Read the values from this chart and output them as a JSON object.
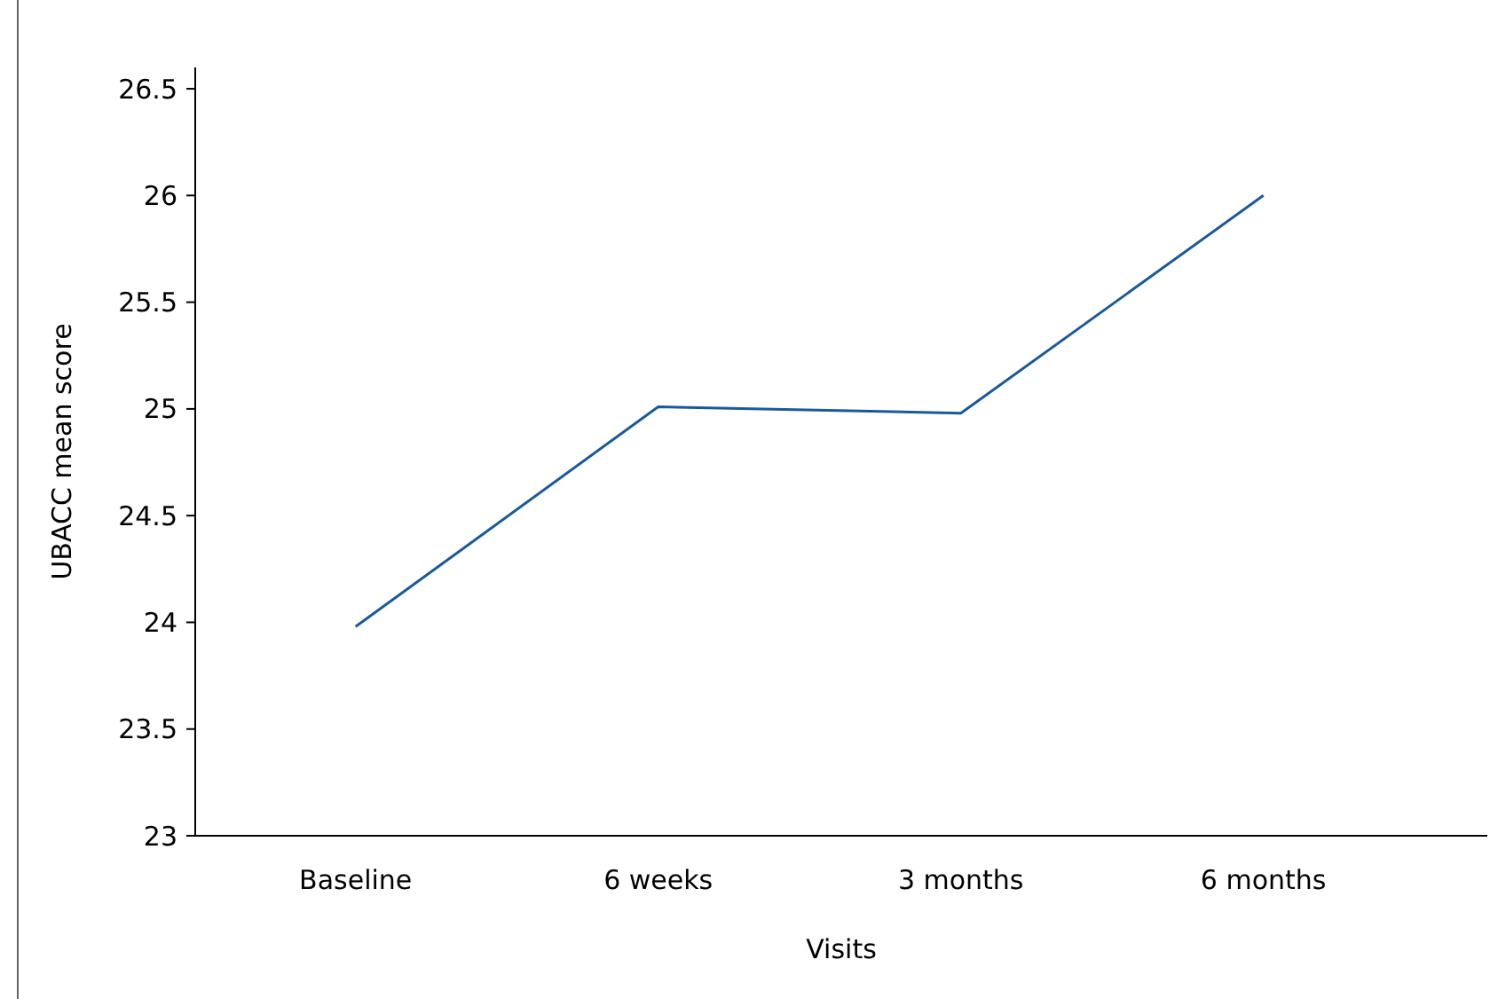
{
  "chart_data": {
    "type": "line",
    "xlabel": "Visits",
    "ylabel": "UBACC mean score",
    "categories": [
      "Baseline",
      "6 weeks",
      "3 months",
      "6 months"
    ],
    "series": [
      {
        "color": "#1a5a9a",
        "values": [
          23.98,
          25.01,
          24.98,
          26.0
        ]
      }
    ],
    "ylim": [
      23,
      26.6
    ],
    "yticks": [
      23,
      23.5,
      24,
      24.5,
      25,
      25.5,
      26,
      26.5
    ],
    "grid": false,
    "marker": "none",
    "line_style": "solid"
  }
}
